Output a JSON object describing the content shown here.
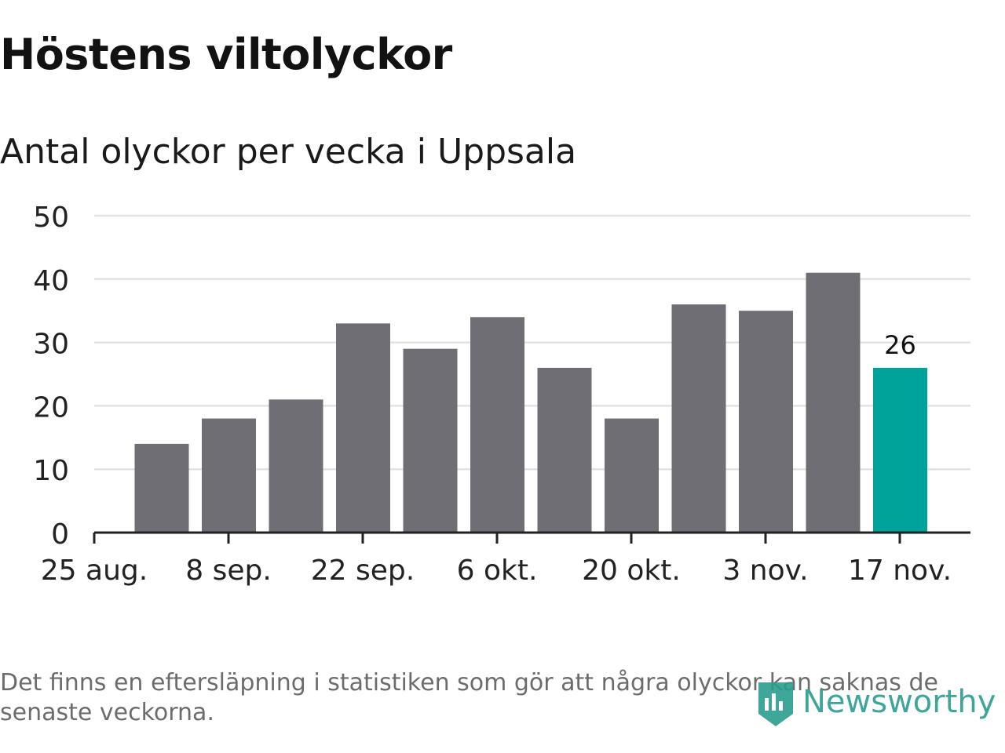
{
  "header": {
    "title": "Höstens viltolyckor",
    "subtitle": "Antal olyckor per vecka i Uppsala"
  },
  "chart_data": {
    "type": "bar",
    "title": "Höstens viltolyckor",
    "subtitle": "Antal olyckor per vecka i Uppsala",
    "xlabel": "",
    "ylabel": "",
    "ylim": [
      0,
      50
    ],
    "yticks": [
      0,
      10,
      20,
      30,
      40,
      50
    ],
    "grid": true,
    "xtick_labels": [
      "25 aug.",
      "8 sep.",
      "22 sep.",
      "6 okt.",
      "20 okt.",
      "3 nov.",
      "17 nov."
    ],
    "values": [
      14,
      18,
      21,
      33,
      29,
      34,
      26,
      18,
      36,
      35,
      41,
      26
    ],
    "highlight_index": 11,
    "highlight_label": "26",
    "colors": {
      "bar": "#6f6e74",
      "highlight": "#00a39a",
      "grid": "#e2e2e2",
      "axis": "#222222"
    }
  },
  "footer": {
    "note": "Det finns en eftersläpning i statistiken som gör att några olyckor kan saknas de senaste veckorna.",
    "brand": "Newsworthy",
    "brand_color": "#2a9d8f"
  }
}
